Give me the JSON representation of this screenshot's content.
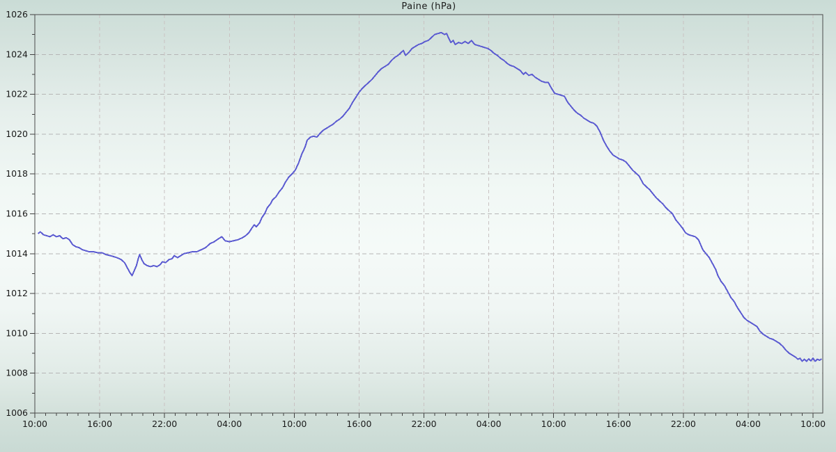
{
  "title": "Paine (hPa)",
  "colors": {
    "line": "#5b5bd1",
    "frame": "#4a4a4a",
    "tick": "#3f3f3f",
    "label": "#1a1a1a",
    "grid_horizontal": "#b5b5b5",
    "grid_vertical": "#c9c2c2",
    "background_top": "#cadcd6",
    "background_center": "#f5faf8",
    "background_bottom": "#c9dad4"
  },
  "chart_data": {
    "type": "line",
    "title": "Paine (hPa)",
    "xlabel": "",
    "ylabel": "",
    "grid": true,
    "legend": "none",
    "ylim": [
      1006,
      1026
    ],
    "xlim_hours": [
      0,
      72.9
    ],
    "y_major_tick_step": 2,
    "y_minor_tick_step": 1,
    "y_major_ticks": [
      1006,
      1008,
      1010,
      1012,
      1014,
      1016,
      1018,
      1020,
      1022,
      1024,
      1026
    ],
    "y_gridline_values": [
      1008,
      1010,
      1012,
      1014,
      1016,
      1018,
      1020,
      1022,
      1024
    ],
    "x_major_tick_hours": [
      0,
      6,
      12,
      18,
      24,
      30,
      36,
      42,
      48,
      54,
      60,
      66,
      72
    ],
    "x_major_tick_labels": [
      "10:00",
      "16:00",
      "22:00",
      "04:00",
      "10:00",
      "16:00",
      "22:00",
      "04:00",
      "10:00",
      "16:00",
      "22:00",
      "04:00",
      "10:00"
    ],
    "x_gridline_hours": [
      6,
      12,
      18,
      24,
      30,
      36,
      42,
      48,
      54,
      60,
      66,
      72
    ],
    "x_minor_tick_step_hours": 1,
    "series": [
      {
        "name": "Paine",
        "color": "#5b5bd1",
        "points": [
          [
            0.3,
            1015.0
          ],
          [
            0.5,
            1015.1
          ],
          [
            0.8,
            1014.95
          ],
          [
            1.1,
            1014.9
          ],
          [
            1.4,
            1014.85
          ],
          [
            1.7,
            1014.95
          ],
          [
            2.0,
            1014.85
          ],
          [
            2.3,
            1014.9
          ],
          [
            2.6,
            1014.75
          ],
          [
            2.9,
            1014.8
          ],
          [
            3.2,
            1014.7
          ],
          [
            3.5,
            1014.45
          ],
          [
            3.8,
            1014.35
          ],
          [
            4.1,
            1014.3
          ],
          [
            4.4,
            1014.2
          ],
          [
            4.7,
            1014.15
          ],
          [
            5.0,
            1014.1
          ],
          [
            5.4,
            1014.1
          ],
          [
            5.8,
            1014.05
          ],
          [
            6.2,
            1014.05
          ],
          [
            6.6,
            1013.95
          ],
          [
            7.0,
            1013.9
          ],
          [
            7.3,
            1013.85
          ],
          [
            7.6,
            1013.8
          ],
          [
            8.0,
            1013.7
          ],
          [
            8.3,
            1013.55
          ],
          [
            8.6,
            1013.25
          ],
          [
            8.8,
            1013.05
          ],
          [
            9.0,
            1012.9
          ],
          [
            9.2,
            1013.15
          ],
          [
            9.4,
            1013.4
          ],
          [
            9.6,
            1013.8
          ],
          [
            9.7,
            1013.95
          ],
          [
            9.9,
            1013.7
          ],
          [
            10.1,
            1013.5
          ],
          [
            10.4,
            1013.4
          ],
          [
            10.7,
            1013.35
          ],
          [
            11.0,
            1013.4
          ],
          [
            11.3,
            1013.35
          ],
          [
            11.6,
            1013.45
          ],
          [
            11.8,
            1013.6
          ],
          [
            12.1,
            1013.55
          ],
          [
            12.4,
            1013.7
          ],
          [
            12.7,
            1013.75
          ],
          [
            12.9,
            1013.9
          ],
          [
            13.2,
            1013.8
          ],
          [
            13.5,
            1013.9
          ],
          [
            13.8,
            1014.0
          ],
          [
            14.2,
            1014.05
          ],
          [
            14.6,
            1014.1
          ],
          [
            15.0,
            1014.1
          ],
          [
            15.4,
            1014.2
          ],
          [
            15.8,
            1014.3
          ],
          [
            16.2,
            1014.5
          ],
          [
            16.6,
            1014.6
          ],
          [
            17.0,
            1014.75
          ],
          [
            17.3,
            1014.85
          ],
          [
            17.6,
            1014.65
          ],
          [
            18.0,
            1014.6
          ],
          [
            18.4,
            1014.65
          ],
          [
            18.8,
            1014.7
          ],
          [
            19.2,
            1014.8
          ],
          [
            19.5,
            1014.9
          ],
          [
            19.8,
            1015.05
          ],
          [
            20.1,
            1015.3
          ],
          [
            20.3,
            1015.45
          ],
          [
            20.5,
            1015.35
          ],
          [
            20.8,
            1015.55
          ],
          [
            21.0,
            1015.8
          ],
          [
            21.3,
            1016.05
          ],
          [
            21.5,
            1016.3
          ],
          [
            21.8,
            1016.5
          ],
          [
            22.0,
            1016.7
          ],
          [
            22.3,
            1016.85
          ],
          [
            22.6,
            1017.1
          ],
          [
            22.9,
            1017.3
          ],
          [
            23.2,
            1017.6
          ],
          [
            23.5,
            1017.85
          ],
          [
            23.8,
            1018.0
          ],
          [
            24.1,
            1018.2
          ],
          [
            24.4,
            1018.55
          ],
          [
            24.7,
            1019.0
          ],
          [
            25.0,
            1019.35
          ],
          [
            25.2,
            1019.7
          ],
          [
            25.5,
            1019.85
          ],
          [
            25.8,
            1019.9
          ],
          [
            26.1,
            1019.85
          ],
          [
            26.4,
            1020.05
          ],
          [
            26.7,
            1020.2
          ],
          [
            27.0,
            1020.3
          ],
          [
            27.3,
            1020.4
          ],
          [
            27.6,
            1020.5
          ],
          [
            27.9,
            1020.65
          ],
          [
            28.2,
            1020.75
          ],
          [
            28.5,
            1020.9
          ],
          [
            28.8,
            1021.1
          ],
          [
            29.1,
            1021.3
          ],
          [
            29.4,
            1021.6
          ],
          [
            29.7,
            1021.85
          ],
          [
            30.0,
            1022.1
          ],
          [
            30.3,
            1022.3
          ],
          [
            30.6,
            1022.45
          ],
          [
            30.9,
            1022.6
          ],
          [
            31.2,
            1022.75
          ],
          [
            31.5,
            1022.95
          ],
          [
            31.8,
            1023.15
          ],
          [
            32.1,
            1023.3
          ],
          [
            32.4,
            1023.4
          ],
          [
            32.7,
            1023.5
          ],
          [
            33.0,
            1023.7
          ],
          [
            33.3,
            1023.85
          ],
          [
            33.6,
            1023.95
          ],
          [
            33.9,
            1024.1
          ],
          [
            34.1,
            1024.2
          ],
          [
            34.3,
            1023.95
          ],
          [
            34.6,
            1024.1
          ],
          [
            34.9,
            1024.3
          ],
          [
            35.2,
            1024.4
          ],
          [
            35.5,
            1024.5
          ],
          [
            35.8,
            1024.55
          ],
          [
            36.1,
            1024.65
          ],
          [
            36.4,
            1024.7
          ],
          [
            36.7,
            1024.85
          ],
          [
            37.0,
            1025.0
          ],
          [
            37.3,
            1025.05
          ],
          [
            37.6,
            1025.1
          ],
          [
            37.9,
            1025.0
          ],
          [
            38.1,
            1025.05
          ],
          [
            38.3,
            1024.8
          ],
          [
            38.5,
            1024.6
          ],
          [
            38.7,
            1024.7
          ],
          [
            38.9,
            1024.5
          ],
          [
            39.2,
            1024.6
          ],
          [
            39.5,
            1024.55
          ],
          [
            39.8,
            1024.65
          ],
          [
            40.1,
            1024.55
          ],
          [
            40.4,
            1024.7
          ],
          [
            40.7,
            1024.5
          ],
          [
            41.0,
            1024.45
          ],
          [
            41.3,
            1024.4
          ],
          [
            41.6,
            1024.35
          ],
          [
            41.9,
            1024.3
          ],
          [
            42.2,
            1024.2
          ],
          [
            42.5,
            1024.05
          ],
          [
            42.8,
            1023.95
          ],
          [
            43.1,
            1023.8
          ],
          [
            43.4,
            1023.7
          ],
          [
            43.7,
            1023.55
          ],
          [
            44.0,
            1023.45
          ],
          [
            44.3,
            1023.4
          ],
          [
            44.6,
            1023.3
          ],
          [
            44.9,
            1023.2
          ],
          [
            45.2,
            1023.0
          ],
          [
            45.4,
            1023.1
          ],
          [
            45.7,
            1022.95
          ],
          [
            46.0,
            1023.0
          ],
          [
            46.3,
            1022.85
          ],
          [
            46.6,
            1022.75
          ],
          [
            46.9,
            1022.65
          ],
          [
            47.2,
            1022.6
          ],
          [
            47.5,
            1022.6
          ],
          [
            47.8,
            1022.3
          ],
          [
            48.1,
            1022.05
          ],
          [
            48.4,
            1022.0
          ],
          [
            48.7,
            1021.95
          ],
          [
            49.0,
            1021.9
          ],
          [
            49.3,
            1021.6
          ],
          [
            49.6,
            1021.4
          ],
          [
            49.9,
            1021.2
          ],
          [
            50.2,
            1021.05
          ],
          [
            50.5,
            1020.95
          ],
          [
            50.8,
            1020.8
          ],
          [
            51.1,
            1020.7
          ],
          [
            51.4,
            1020.6
          ],
          [
            51.7,
            1020.55
          ],
          [
            52.0,
            1020.4
          ],
          [
            52.3,
            1020.1
          ],
          [
            52.6,
            1019.7
          ],
          [
            52.9,
            1019.4
          ],
          [
            53.2,
            1019.15
          ],
          [
            53.5,
            1018.95
          ],
          [
            53.8,
            1018.85
          ],
          [
            54.1,
            1018.75
          ],
          [
            54.4,
            1018.7
          ],
          [
            54.7,
            1018.6
          ],
          [
            55.0,
            1018.4
          ],
          [
            55.3,
            1018.2
          ],
          [
            55.6,
            1018.05
          ],
          [
            55.9,
            1017.9
          ],
          [
            56.1,
            1017.7
          ],
          [
            56.3,
            1017.5
          ],
          [
            56.6,
            1017.35
          ],
          [
            56.9,
            1017.2
          ],
          [
            57.2,
            1017.0
          ],
          [
            57.5,
            1016.8
          ],
          [
            57.8,
            1016.65
          ],
          [
            58.1,
            1016.5
          ],
          [
            58.4,
            1016.3
          ],
          [
            58.7,
            1016.15
          ],
          [
            59.0,
            1016.0
          ],
          [
            59.3,
            1015.7
          ],
          [
            59.6,
            1015.5
          ],
          [
            59.9,
            1015.3
          ],
          [
            60.2,
            1015.05
          ],
          [
            60.5,
            1014.95
          ],
          [
            60.8,
            1014.9
          ],
          [
            61.1,
            1014.85
          ],
          [
            61.4,
            1014.7
          ],
          [
            61.6,
            1014.45
          ],
          [
            61.8,
            1014.2
          ],
          [
            62.1,
            1014.0
          ],
          [
            62.4,
            1013.8
          ],
          [
            62.7,
            1013.5
          ],
          [
            63.0,
            1013.2
          ],
          [
            63.2,
            1012.9
          ],
          [
            63.5,
            1012.6
          ],
          [
            63.8,
            1012.4
          ],
          [
            64.1,
            1012.1
          ],
          [
            64.4,
            1011.8
          ],
          [
            64.7,
            1011.6
          ],
          [
            65.0,
            1011.3
          ],
          [
            65.3,
            1011.05
          ],
          [
            65.6,
            1010.8
          ],
          [
            65.9,
            1010.65
          ],
          [
            66.2,
            1010.55
          ],
          [
            66.5,
            1010.45
          ],
          [
            66.8,
            1010.35
          ],
          [
            67.1,
            1010.1
          ],
          [
            67.4,
            1009.95
          ],
          [
            67.7,
            1009.85
          ],
          [
            68.0,
            1009.75
          ],
          [
            68.3,
            1009.7
          ],
          [
            68.6,
            1009.6
          ],
          [
            68.9,
            1009.5
          ],
          [
            69.2,
            1009.35
          ],
          [
            69.5,
            1009.15
          ],
          [
            69.8,
            1009.0
          ],
          [
            70.1,
            1008.9
          ],
          [
            70.4,
            1008.8
          ],
          [
            70.6,
            1008.7
          ],
          [
            70.8,
            1008.75
          ],
          [
            71.0,
            1008.6
          ],
          [
            71.2,
            1008.7
          ],
          [
            71.4,
            1008.6
          ],
          [
            71.6,
            1008.72
          ],
          [
            71.8,
            1008.62
          ],
          [
            72.0,
            1008.75
          ],
          [
            72.2,
            1008.6
          ],
          [
            72.4,
            1008.7
          ],
          [
            72.6,
            1008.65
          ],
          [
            72.8,
            1008.72
          ]
        ]
      }
    ]
  }
}
